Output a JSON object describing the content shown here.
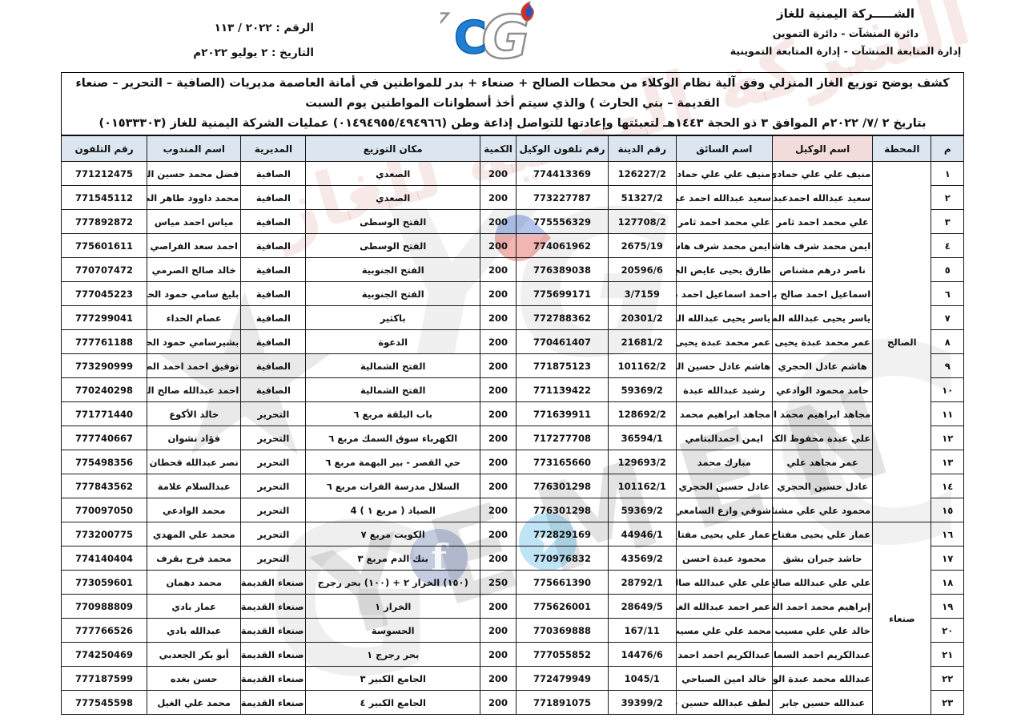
{
  "company": {
    "line1": "الشـــــركة اليمنية للغاز",
    "line2": "دائرة المنشآت - دائرة التموين",
    "line3": "إدارة المتابعة المنشآت - إدارة المتابعة التموينية"
  },
  "meta": {
    "doc_number": "الرقم : ٢٠٢٢ / ١١٣",
    "doc_date": "التاريخ : ٢ يوليو ٢٠٢٢م"
  },
  "title": {
    "line1": "كشف يوضح توزيع الغاز المنزلي وفق آلية نظام الوكلاء من محطات الصالح + صنعاء + بدر للمواطنين في أمانة العاصمة مديريات (الصافية – التحرير – صنعاء القديمة – بني الحارث ) والذي سيتم أخذ أسطوانات المواطنين يوم السبت",
    "line2": "بتاريخ ٢ /٧/ ٢٠٢٢م الموافق ٣ ذو الحجة ١٤٤٣هـ لتعبئتها وإعادتها للتواصل إذاعة وطن (٠١٤٩٤٩٥٥/٤٩٤٩٦٦) عمليات الشركة اليمنية للغاز (٠١٥٣٣٣٠٣)"
  },
  "table": {
    "headers": [
      "م",
      "المحطة",
      "اسم الوكيل",
      "اسم السائق",
      "رقم الدينة",
      "رقم تلفون الوكيل",
      "الكمية",
      "مكان التوزيع",
      "المديرية",
      "اسم المندوب",
      "رقم التلفون"
    ],
    "stations": [
      {
        "label": "الصالح",
        "from": 1,
        "to": 15
      },
      {
        "label": "صنعاء",
        "from": 16,
        "to": 23
      }
    ],
    "rows": [
      {
        "no": "١",
        "agent": "منيف علي علي حمادي",
        "driver": "منيف علي علي حمادي",
        "truck_no": "126227/2",
        "agent_phone": "774413369",
        "qty": "200",
        "location": "الصعدي",
        "district": "الصافية",
        "rep": "فضل محمد حسين الفقيه",
        "rep_phone": "771212475"
      },
      {
        "no": "٢",
        "agent": "سعيد عبدالله احمدعبدالله",
        "driver": "سعيد عبدالله احمد عبدالله",
        "truck_no": "51327/2",
        "agent_phone": "773227787",
        "qty": "200",
        "location": "الصعدي",
        "district": "الصافية",
        "rep": "محمد داوود طاهر الصلوي",
        "rep_phone": "771545112"
      },
      {
        "no": "٣",
        "agent": "علي محمد احمد ثامر",
        "driver": "علي محمد احمد ثامر",
        "truck_no": "127708/2",
        "agent_phone": "775556329",
        "qty": "200",
        "location": "الفتح الوسطى",
        "district": "الصافية",
        "rep": "مياس احمد مياس",
        "rep_phone": "777892872"
      },
      {
        "no": "٤",
        "agent": "ايمن محمد شرف هاشم",
        "driver": "ايمن محمد شرف هاشم",
        "truck_no": "2675/19",
        "agent_phone": "774061962",
        "qty": "200",
        "location": "الفتح الوسطى",
        "district": "الصافية",
        "rep": "احمد سعد الفراصي",
        "rep_phone": "775601611"
      },
      {
        "no": "٥",
        "agent": "ناصر درهم مشناص",
        "driver": "طارق يحيى عايض الجفره",
        "truck_no": "20596/6",
        "agent_phone": "776389038",
        "qty": "200",
        "location": "الفتح الجنوبية",
        "district": "الصافية",
        "rep": "خالد صالح الصرمي",
        "rep_phone": "770707472"
      },
      {
        "no": "٦",
        "agent": "اسماعيل احمد صالح بشر",
        "driver": "احمد اسماعيل احمد صالح بشر",
        "truck_no": "3/7159",
        "agent_phone": "775699171",
        "qty": "200",
        "location": "الفتح الجنوبية",
        "district": "الصافية",
        "rep": "بليغ سامي حمود الحمادي",
        "rep_phone": "777045223"
      },
      {
        "no": "٧",
        "agent": "ياسر يحيى عبدالله المدحني",
        "driver": "ياسر يحيى عبدالله المدحني",
        "truck_no": "20301/2",
        "agent_phone": "772788362",
        "qty": "200",
        "location": "باكثير",
        "district": "الصافية",
        "rep": "عصام الحداء",
        "rep_phone": "777299041"
      },
      {
        "no": "٨",
        "agent": "عمر محمد عبدة يحيى",
        "driver": "عمر محمد عبدة يحيى",
        "truck_no": "21681/2",
        "agent_phone": "770461407",
        "qty": "200",
        "location": "الدعوة",
        "district": "الصافية",
        "rep": "بشيرسامي حمود الحمادي",
        "rep_phone": "777761188"
      },
      {
        "no": "٩",
        "agent": "هاشم عادل الحجري",
        "driver": "هاشم عادل حسين الحجري",
        "truck_no": "101162/2",
        "agent_phone": "771875123",
        "qty": "200",
        "location": "الفتح الشمالية",
        "district": "الصافية",
        "rep": "توفيق احمد احمد الصرح",
        "rep_phone": "773290999"
      },
      {
        "no": "١٠",
        "agent": "حامد محمود الوادعي",
        "driver": "رشيد عبدالله عبدة",
        "truck_no": "59369/2",
        "agent_phone": "771139422",
        "qty": "200",
        "location": "الفتح الشمالية",
        "district": "الصافية",
        "rep": "احمد عبدالله صالح القملي",
        "rep_phone": "770240298"
      },
      {
        "no": "١١",
        "agent": "مجاهد ابراهيم محمد الريدي",
        "driver": "مجاهد ابراهيم محمد الريدي",
        "truck_no": "128692/2",
        "agent_phone": "771639911",
        "qty": "200",
        "location": "باب البلقة مربع ٦",
        "district": "التحرير",
        "rep": "خالد الأكوع",
        "rep_phone": "771771440"
      },
      {
        "no": "١٢",
        "agent": "علي عبدة محفوظ الكبودي",
        "driver": "ايمن احمدالبتامي",
        "truck_no": "36594/1",
        "agent_phone": "717277708",
        "qty": "200",
        "location": "الكهرباء سوق السمك مربع ٦",
        "district": "التحرير",
        "rep": "فؤاد نشوان",
        "rep_phone": "777740667"
      },
      {
        "no": "١٣",
        "agent": "عمر مجاهد علي",
        "driver": "مبارك محمد",
        "truck_no": "129693/2",
        "agent_phone": "773165660",
        "qty": "200",
        "location": "حي القصر - بير البهمة مربع ٦",
        "district": "التحرير",
        "rep": "نصر عبدالله قحطان",
        "rep_phone": "775498356"
      },
      {
        "no": "١٤",
        "agent": "عادل حسين الحجري",
        "driver": "عادل حسين الحجري",
        "truck_no": "101162/1",
        "agent_phone": "776301298",
        "qty": "200",
        "location": "السلال مدرسة الفرات مربع ٦",
        "district": "التحرير",
        "rep": "عبدالسلام علامة",
        "rep_phone": "777843562"
      },
      {
        "no": "١٥",
        "agent": "محمود علي علي مشناص",
        "driver": "شوقي وازع السامعي",
        "truck_no": "59369/2",
        "agent_phone": "776301298",
        "qty": "200",
        "location": "الصياد ( مربع ١ ) 4",
        "district": "التحرير",
        "rep": "محمد الوادعي",
        "rep_phone": "770097050"
      },
      {
        "no": "١٦",
        "agent": "عمار علي يحيى مفتاح",
        "driver": "عمار علي يحيى مفتاح",
        "truck_no": "44946/1",
        "agent_phone": "772829169",
        "qty": "200",
        "location": "الكويت مربع ٧",
        "district": "التحرير",
        "rep": "محمد علي المهدي",
        "rep_phone": "773200775"
      },
      {
        "no": "١٧",
        "agent": "حاشد جبران بشق",
        "driver": "محمود عبدة احسن",
        "truck_no": "43569/2",
        "agent_phone": "770976832",
        "qty": "200",
        "location": "بنك الدم مربع ٣",
        "district": "التحرير",
        "rep": "محمد فرج بقرف",
        "rep_phone": "774140404"
      },
      {
        "no": "١٨",
        "agent": "علي علي عبدالله صالح",
        "driver": "علي علي عبدالله صالح",
        "truck_no": "28792/1",
        "agent_phone": "775661390",
        "qty": "250",
        "location": "(١٥٠) الخراز ٢ + (١٠٠) بحر رجرج",
        "district": "صنعاء القديمة",
        "rep": "محمد دهمان",
        "rep_phone": "773059601"
      },
      {
        "no": "١٩",
        "agent": "إبراهيم محمد احمد الشولي",
        "driver": "عمر احمد عبدالله الغزالي",
        "truck_no": "28649/5",
        "agent_phone": "775626001",
        "qty": "200",
        "location": "الخراز ١",
        "district": "صنعاء القديمة",
        "rep": "عمار بادي",
        "rep_phone": "770988809"
      },
      {
        "no": "٢٠",
        "agent": "خالد علي علي مسيب",
        "driver": "محمد علي علي مسيب",
        "truck_no": "167/11",
        "agent_phone": "770369888",
        "qty": "200",
        "location": "الحسوسة",
        "district": "صنعاء القديمة",
        "rep": "عبدالله بادي",
        "rep_phone": "777766526"
      },
      {
        "no": "٢١",
        "agent": "عبدالكريم احمد السماعي",
        "driver": "عبدالكريم احمد احمد السماعي",
        "truck_no": "14476/6",
        "agent_phone": "777055852",
        "qty": "200",
        "location": "بحر رجرج ١",
        "district": "صنعاء القديمة",
        "rep": "أبو بكر الجعدبي",
        "rep_phone": "774250469"
      },
      {
        "no": "٢٢",
        "agent": "عبدالله محمد عبدة الوجية",
        "driver": "خالد امين الصباحي",
        "truck_no": "1045/1",
        "agent_phone": "772479949",
        "qty": "200",
        "location": "الجامع الكبير ٣",
        "district": "صنعاء القديمة",
        "rep": "حسن بغده",
        "rep_phone": "777187599"
      },
      {
        "no": "٢٣",
        "agent": "عبدالله حسين جابر",
        "driver": "لطف عبدالله حسين جابر",
        "truck_no": "39399/2",
        "agent_phone": "771891075",
        "qty": "200",
        "location": "الجامع الكبير ٤",
        "district": "صنعاء القديمة",
        "rep": "محمد علي الغيل",
        "rep_phone": "777545598"
      }
    ]
  },
  "watermark": {
    "arabic_text": "الشركة اليمنية للغاز",
    "logo_letters": "YG",
    "latin_text": "YEMEN",
    "letter_c": "C",
    "letter_g": "G",
    "facebook_glyph": "f",
    "telegram_glyph": "➤",
    "star_glyph": "★"
  },
  "colors": {
    "header_bg": "#dce6f1",
    "agent_header_bg": "#f2dcdb",
    "agent_column_bg": "#e7bab8",
    "border": "#1a1a1a",
    "logo_blue": "#1f7fd4",
    "logo_red": "#d92b1f",
    "watermark_red": "#c5524d",
    "facebook_blue": "#3b5998",
    "telegram_blue": "#29a5e0"
  }
}
